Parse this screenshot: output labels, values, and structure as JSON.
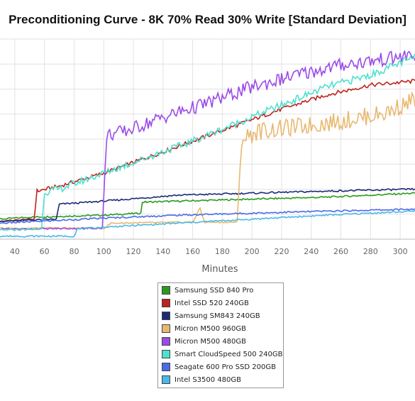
{
  "chart_data": {
    "type": "line",
    "title": "Preconditioning Curve - 8K 70% Read 30% Write [Standard Deviation]",
    "xlabel": "Minutes",
    "ylabel": "",
    "xlim": [
      30,
      310
    ],
    "ylim": [
      0,
      10
    ],
    "grid": true,
    "legend_position": "bottom-center",
    "x_ticks": [
      40,
      60,
      80,
      100,
      120,
      140,
      160,
      180,
      200,
      220,
      240,
      260,
      280,
      300
    ],
    "series": [
      {
        "name": "Samsung SSD 840 Pro",
        "color": "#2a9a1c",
        "points": [
          [
            30,
            1.0
          ],
          [
            50,
            1.1
          ],
          [
            100,
            1.2
          ],
          [
            125,
            1.3
          ],
          [
            126,
            1.85
          ],
          [
            150,
            1.9
          ],
          [
            200,
            2.0
          ],
          [
            250,
            2.1
          ],
          [
            310,
            2.3
          ]
        ]
      },
      {
        "name": "Intel SSD 520 240GB",
        "color": "#c0221c",
        "points": [
          [
            30,
            0.9
          ],
          [
            53,
            1.0
          ],
          [
            55,
            2.4
          ],
          [
            70,
            2.65
          ],
          [
            100,
            3.3
          ],
          [
            130,
            4.1
          ],
          [
            160,
            4.9
          ],
          [
            190,
            5.7
          ],
          [
            220,
            6.5
          ],
          [
            250,
            7.2
          ],
          [
            280,
            7.7
          ],
          [
            310,
            7.9
          ]
        ]
      },
      {
        "name": "Samsung SM843 240GB",
        "color": "#1a2a78",
        "points": [
          [
            30,
            0.9
          ],
          [
            68,
            1.0
          ],
          [
            70,
            1.75
          ],
          [
            100,
            1.9
          ],
          [
            150,
            2.2
          ],
          [
            200,
            2.3
          ],
          [
            250,
            2.4
          ],
          [
            310,
            2.5
          ]
        ]
      },
      {
        "name": "Micron M500 960GB",
        "color": "#e8b870",
        "points": [
          [
            30,
            0.55
          ],
          [
            100,
            0.55
          ],
          [
            105,
            0.8
          ],
          [
            160,
            0.85
          ],
          [
            165,
            1.55
          ],
          [
            168,
            0.85
          ],
          [
            190,
            0.85
          ],
          [
            193,
            5.0
          ],
          [
            205,
            5.4
          ],
          [
            230,
            5.6
          ],
          [
            260,
            5.9
          ],
          [
            290,
            6.3
          ],
          [
            310,
            7.0
          ]
        ]
      },
      {
        "name": "Micron M500 480GB",
        "color": "#9b4be8",
        "points": [
          [
            30,
            0.5
          ],
          [
            99,
            0.55
          ],
          [
            102,
            5.2
          ],
          [
            115,
            5.4
          ],
          [
            140,
            6.1
          ],
          [
            170,
            6.8
          ],
          [
            200,
            7.6
          ],
          [
            230,
            8.2
          ],
          [
            260,
            8.7
          ],
          [
            290,
            9.0
          ],
          [
            310,
            9.2
          ]
        ]
      },
      {
        "name": "Smart CloudSpeed 500 240GB",
        "color": "#4de0d0",
        "points": [
          [
            30,
            0.45
          ],
          [
            58,
            0.5
          ],
          [
            60,
            2.35
          ],
          [
            70,
            2.5
          ],
          [
            100,
            3.3
          ],
          [
            130,
            4.1
          ],
          [
            160,
            4.9
          ],
          [
            190,
            5.8
          ],
          [
            220,
            6.7
          ],
          [
            250,
            7.6
          ],
          [
            280,
            8.2
          ],
          [
            310,
            9.1
          ]
        ]
      },
      {
        "name": "Seagate 600 Pro SSD 200GB",
        "color": "#4a6ae8",
        "points": [
          [
            30,
            0.8
          ],
          [
            100,
            1.05
          ],
          [
            150,
            1.2
          ],
          [
            200,
            1.3
          ],
          [
            250,
            1.4
          ],
          [
            310,
            1.5
          ]
        ]
      },
      {
        "name": "Intel S3500 480GB",
        "color": "#4ab8e8",
        "points": [
          [
            30,
            0.15
          ],
          [
            80,
            0.15
          ],
          [
            82,
            0.5
          ],
          [
            100,
            0.6
          ],
          [
            150,
            0.8
          ],
          [
            200,
            1.0
          ],
          [
            250,
            1.2
          ],
          [
            310,
            1.4
          ]
        ]
      }
    ]
  }
}
